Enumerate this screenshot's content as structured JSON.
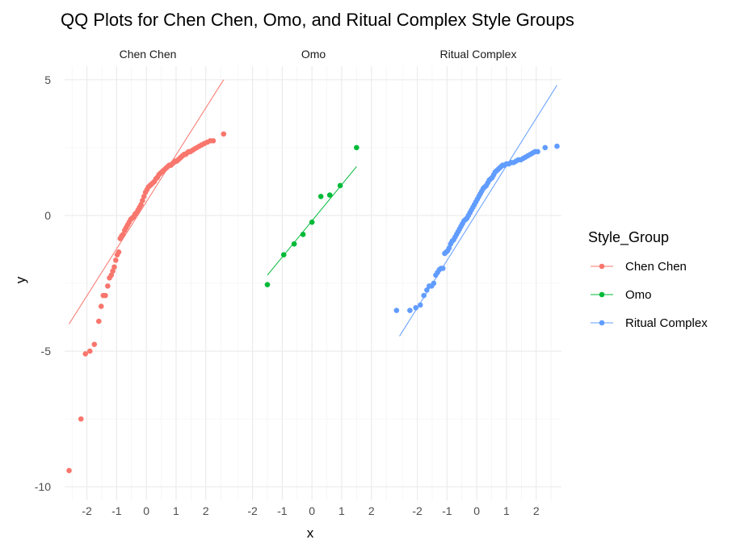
{
  "chart_data": {
    "type": "scatter",
    "title": "QQ Plots for Chen Chen, Omo, and Ritual Complex Style Groups",
    "xlabel": "x",
    "ylabel": "y",
    "xlim": [
      -2.75,
      2.85
    ],
    "ylim": [
      -10.5,
      5.5
    ],
    "x_ticks": [
      -2,
      -1,
      0,
      1,
      2
    ],
    "x_tick_labels": [
      "-2",
      "-1",
      "0",
      "1",
      "2"
    ],
    "y_ticks": [
      5,
      0,
      -5,
      -10
    ],
    "y_tick_labels": [
      "5",
      "0",
      "-5",
      "-10"
    ],
    "legend": {
      "title": "Style_Group",
      "position": "right",
      "entries": [
        "Chen Chen",
        "Omo",
        "Ritual Complex"
      ]
    },
    "grid": true,
    "facets": [
      {
        "name": "Chen Chen",
        "color": "#F8766D",
        "line": [
          [
            -2.6,
            -4.0
          ],
          [
            2.6,
            5.0
          ]
        ],
        "points": [
          [
            -2.6,
            -9.4
          ],
          [
            -2.2,
            -7.5
          ],
          [
            -2.05,
            -5.1
          ],
          [
            -1.9,
            -5.0
          ],
          [
            -1.75,
            -4.75
          ],
          [
            -1.6,
            -3.9
          ],
          [
            -1.52,
            -3.35
          ],
          [
            -1.45,
            -2.95
          ],
          [
            -1.38,
            -2.95
          ],
          [
            -1.3,
            -2.6
          ],
          [
            -1.24,
            -2.3
          ],
          [
            -1.18,
            -2.2
          ],
          [
            -1.13,
            -2.05
          ],
          [
            -1.08,
            -1.9
          ],
          [
            -1.03,
            -1.65
          ],
          [
            -0.98,
            -1.45
          ],
          [
            -0.93,
            -1.35
          ],
          [
            -0.88,
            -0.85
          ],
          [
            -0.83,
            -0.75
          ],
          [
            -0.78,
            -0.7
          ],
          [
            -0.73,
            -0.55
          ],
          [
            -0.68,
            -0.45
          ],
          [
            -0.63,
            -0.35
          ],
          [
            -0.58,
            -0.25
          ],
          [
            -0.53,
            -0.15
          ],
          [
            -0.48,
            -0.1
          ],
          [
            -0.43,
            -0.05
          ],
          [
            -0.38,
            0.05
          ],
          [
            -0.33,
            0.1
          ],
          [
            -0.28,
            0.2
          ],
          [
            -0.23,
            0.3
          ],
          [
            -0.18,
            0.4
          ],
          [
            -0.13,
            0.55
          ],
          [
            -0.08,
            0.7
          ],
          [
            -0.03,
            0.85
          ],
          [
            0.02,
            0.95
          ],
          [
            0.07,
            1.05
          ],
          [
            0.12,
            1.1
          ],
          [
            0.17,
            1.15
          ],
          [
            0.22,
            1.2
          ],
          [
            0.27,
            1.25
          ],
          [
            0.32,
            1.35
          ],
          [
            0.37,
            1.4
          ],
          [
            0.42,
            1.5
          ],
          [
            0.47,
            1.55
          ],
          [
            0.52,
            1.6
          ],
          [
            0.57,
            1.65
          ],
          [
            0.62,
            1.7
          ],
          [
            0.67,
            1.75
          ],
          [
            0.72,
            1.8
          ],
          [
            0.77,
            1.85
          ],
          [
            0.82,
            1.85
          ],
          [
            0.87,
            1.9
          ],
          [
            0.92,
            1.95
          ],
          [
            0.97,
            2.0
          ],
          [
            1.02,
            2.0
          ],
          [
            1.07,
            2.05
          ],
          [
            1.12,
            2.1
          ],
          [
            1.17,
            2.15
          ],
          [
            1.22,
            2.2
          ],
          [
            1.27,
            2.25
          ],
          [
            1.32,
            2.25
          ],
          [
            1.37,
            2.3
          ],
          [
            1.42,
            2.35
          ],
          [
            1.48,
            2.35
          ],
          [
            1.55,
            2.4
          ],
          [
            1.62,
            2.45
          ],
          [
            1.7,
            2.5
          ],
          [
            1.78,
            2.55
          ],
          [
            1.86,
            2.6
          ],
          [
            1.95,
            2.65
          ],
          [
            2.05,
            2.7
          ],
          [
            2.15,
            2.75
          ],
          [
            2.25,
            2.75
          ],
          [
            2.6,
            3.0
          ]
        ]
      },
      {
        "name": "Omo",
        "color": "#00BA38",
        "line": [
          [
            -1.5,
            -2.2
          ],
          [
            1.5,
            1.8
          ]
        ],
        "points": [
          [
            -1.5,
            -2.55
          ],
          [
            -0.95,
            -1.45
          ],
          [
            -0.6,
            -1.05
          ],
          [
            -0.3,
            -0.7
          ],
          [
            0.0,
            -0.25
          ],
          [
            0.3,
            0.7
          ],
          [
            0.6,
            0.75
          ],
          [
            0.95,
            1.1
          ],
          [
            1.5,
            2.5
          ]
        ]
      },
      {
        "name": "Ritual Complex",
        "color": "#619CFF",
        "line": [
          [
            -2.6,
            -4.45
          ],
          [
            2.7,
            4.8
          ]
        ],
        "points": [
          [
            -2.7,
            -3.5
          ],
          [
            -2.25,
            -3.5
          ],
          [
            -2.05,
            -3.4
          ],
          [
            -1.9,
            -3.3
          ],
          [
            -1.78,
            -2.95
          ],
          [
            -1.68,
            -2.75
          ],
          [
            -1.6,
            -2.6
          ],
          [
            -1.52,
            -2.6
          ],
          [
            -1.45,
            -2.5
          ],
          [
            -1.38,
            -2.2
          ],
          [
            -1.32,
            -2.1
          ],
          [
            -1.26,
            -2.0
          ],
          [
            -1.2,
            -1.95
          ],
          [
            -1.14,
            -1.95
          ],
          [
            -1.08,
            -1.4
          ],
          [
            -1.03,
            -1.35
          ],
          [
            -0.98,
            -1.3
          ],
          [
            -0.93,
            -1.2
          ],
          [
            -0.88,
            -1.05
          ],
          [
            -0.83,
            -0.95
          ],
          [
            -0.78,
            -0.9
          ],
          [
            -0.73,
            -0.8
          ],
          [
            -0.68,
            -0.7
          ],
          [
            -0.63,
            -0.6
          ],
          [
            -0.58,
            -0.5
          ],
          [
            -0.53,
            -0.4
          ],
          [
            -0.48,
            -0.3
          ],
          [
            -0.43,
            -0.2
          ],
          [
            -0.38,
            -0.15
          ],
          [
            -0.33,
            -0.1
          ],
          [
            -0.28,
            0.0
          ],
          [
            -0.23,
            0.1
          ],
          [
            -0.18,
            0.2
          ],
          [
            -0.13,
            0.3
          ],
          [
            -0.08,
            0.4
          ],
          [
            -0.03,
            0.5
          ],
          [
            0.02,
            0.6
          ],
          [
            0.07,
            0.7
          ],
          [
            0.12,
            0.8
          ],
          [
            0.17,
            0.9
          ],
          [
            0.22,
            1.0
          ],
          [
            0.27,
            1.05
          ],
          [
            0.32,
            1.1
          ],
          [
            0.37,
            1.2
          ],
          [
            0.42,
            1.3
          ],
          [
            0.47,
            1.35
          ],
          [
            0.52,
            1.4
          ],
          [
            0.57,
            1.5
          ],
          [
            0.62,
            1.6
          ],
          [
            0.67,
            1.65
          ],
          [
            0.72,
            1.7
          ],
          [
            0.77,
            1.75
          ],
          [
            0.82,
            1.8
          ],
          [
            0.87,
            1.85
          ],
          [
            0.93,
            1.85
          ],
          [
            1.0,
            1.9
          ],
          [
            1.08,
            1.9
          ],
          [
            1.16,
            1.95
          ],
          [
            1.24,
            1.95
          ],
          [
            1.32,
            2.0
          ],
          [
            1.4,
            2.05
          ],
          [
            1.48,
            2.05
          ],
          [
            1.56,
            2.1
          ],
          [
            1.64,
            2.15
          ],
          [
            1.72,
            2.2
          ],
          [
            1.8,
            2.25
          ],
          [
            1.88,
            2.3
          ],
          [
            1.96,
            2.35
          ],
          [
            2.05,
            2.35
          ],
          [
            2.3,
            2.5
          ],
          [
            2.7,
            2.55
          ]
        ]
      }
    ]
  }
}
